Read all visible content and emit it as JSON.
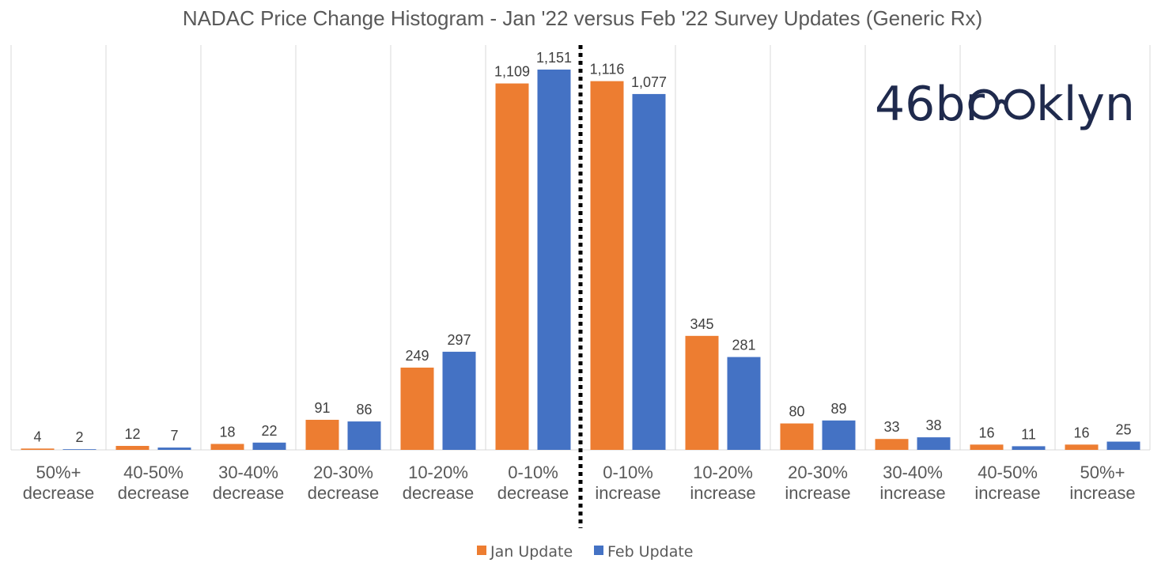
{
  "chart_data": {
    "type": "bar",
    "title": "NADAC Price Change Histogram - Jan '22 versus Feb '22 Survey Updates (Generic Rx)",
    "categories": [
      "50%+ decrease",
      "40-50% decrease",
      "30-40% decrease",
      "20-30% decrease",
      "10-20% decrease",
      "0-10% decrease",
      "0-10% increase",
      "10-20% increase",
      "20-30% increase",
      "30-40% increase",
      "40-50% increase",
      "50%+ increase"
    ],
    "category_lines": [
      [
        "50%+",
        "decrease"
      ],
      [
        "40-50%",
        "decrease"
      ],
      [
        "30-40%",
        "decrease"
      ],
      [
        "20-30%",
        "decrease"
      ],
      [
        "10-20%",
        "decrease"
      ],
      [
        "0-10%",
        "decrease"
      ],
      [
        "0-10%",
        "increase"
      ],
      [
        "10-20%",
        "increase"
      ],
      [
        "20-30%",
        "increase"
      ],
      [
        "30-40%",
        "increase"
      ],
      [
        "40-50%",
        "increase"
      ],
      [
        "50%+",
        "increase"
      ]
    ],
    "series": [
      {
        "name": "Jan Update",
        "color": "#ED7D31",
        "values": [
          4,
          12,
          18,
          91,
          249,
          1109,
          1116,
          345,
          80,
          33,
          16,
          16
        ],
        "labels": [
          "4",
          "12",
          "18",
          "91",
          "249",
          "1,109",
          "1,116",
          "345",
          "80",
          "33",
          "16",
          "16"
        ]
      },
      {
        "name": "Feb Update",
        "color": "#4472C4",
        "values": [
          2,
          7,
          22,
          86,
          297,
          1151,
          1077,
          281,
          89,
          38,
          11,
          25
        ],
        "labels": [
          "2",
          "7",
          "22",
          "86",
          "297",
          "1,151",
          "1,077",
          "281",
          "89",
          "38",
          "11",
          "25"
        ]
      }
    ],
    "ylim": [
      0,
      1300
    ],
    "grid": "vertical category separators",
    "legend": "bottom",
    "divider": "dotted line between decrease and increase"
  },
  "logo": {
    "text": "46brooklyn",
    "color": "#1F2A4D"
  }
}
